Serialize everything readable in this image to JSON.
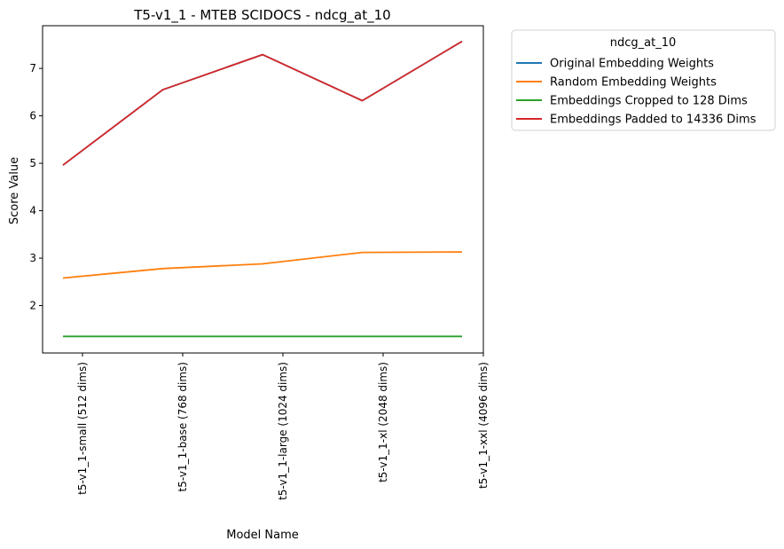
{
  "chart_data": {
    "type": "line",
    "title": "T5-v1_1 - MTEB SCIDOCS - ndcg_at_10",
    "xlabel": "Model Name",
    "ylabel": "Score Value",
    "categories": [
      "t5-v1_1-small (512 dims)",
      "t5-v1_1-base (768 dims)",
      "t5-v1_1-large (1024 dims)",
      "t5-v1_1-xl (2048 dims)",
      "t5-v1_1-xxl (4096 dims)"
    ],
    "ylim": [
      1.0,
      7.9
    ],
    "yticks": [
      2,
      3,
      4,
      5,
      6,
      7
    ],
    "grid": false,
    "legend": {
      "title": "ndcg_at_10",
      "placement": "outside-top-right"
    },
    "series": [
      {
        "name": "Original Embedding Weights",
        "color": "#1f77b4",
        "values": [
          4.96,
          6.55,
          7.29,
          6.32,
          7.57
        ]
      },
      {
        "name": "Random Embedding Weights",
        "color": "#ff7f0e",
        "values": [
          2.58,
          2.78,
          2.88,
          3.12,
          3.13
        ]
      },
      {
        "name": "Embeddings Cropped to 128 Dims",
        "color": "#2ca02c",
        "values": [
          1.35,
          1.35,
          1.35,
          1.35,
          1.35
        ]
      },
      {
        "name": "Embeddings Padded to 14336 Dims",
        "color": "#d62728",
        "values": [
          4.96,
          6.55,
          7.29,
          6.32,
          7.57
        ]
      }
    ]
  }
}
